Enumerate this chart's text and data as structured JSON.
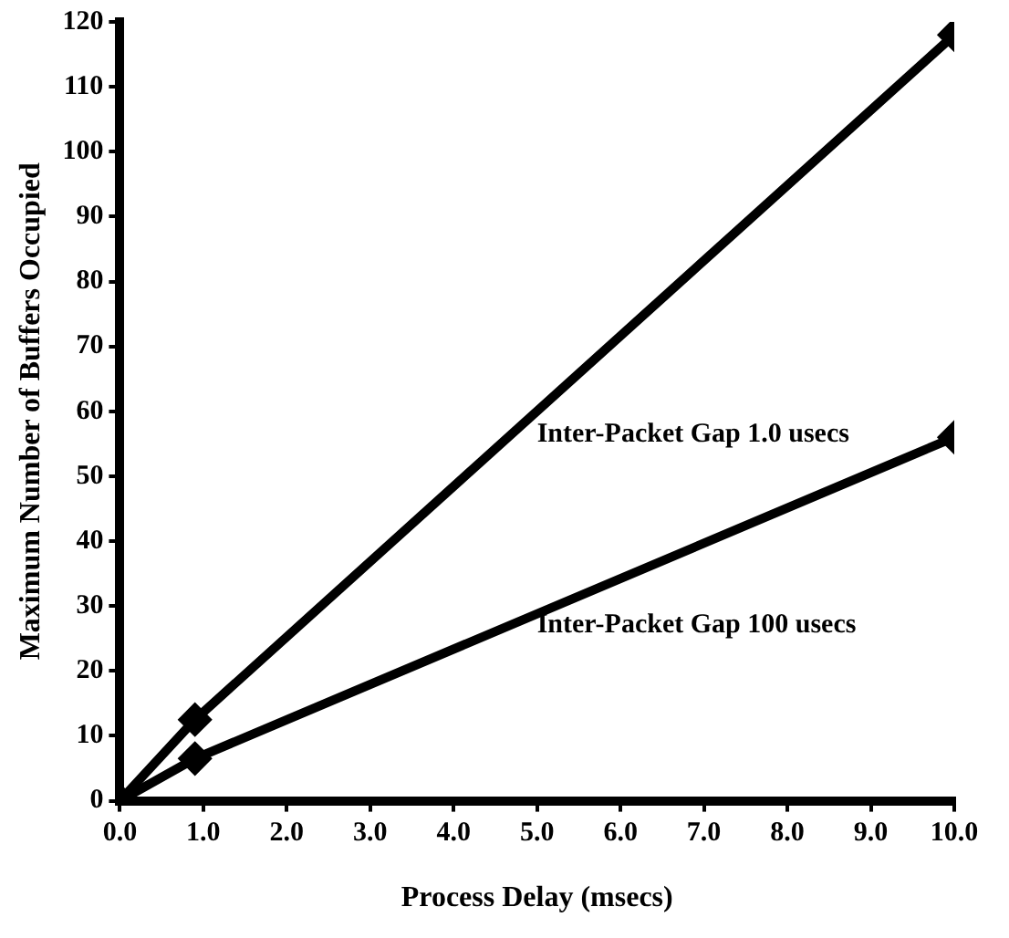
{
  "chart_data": {
    "type": "line",
    "xlabel": "Process Delay (msecs)",
    "ylabel": "Maximum Number of Buffers Occupied",
    "series": [
      {
        "name": "Inter-Packet Gap 1.0 usecs",
        "color": "#000000",
        "x": [
          0,
          0.9,
          10
        ],
        "values": [
          0,
          12.5,
          118
        ]
      },
      {
        "name": "Inter-Packet Gap 100 usecs",
        "color": "#000000",
        "x": [
          0,
          0.9,
          10
        ],
        "values": [
          0,
          6.5,
          56
        ]
      }
    ],
    "xlim": [
      0,
      10
    ],
    "xticks": [
      {
        "value": 0,
        "label": "0.0"
      },
      {
        "value": 1,
        "label": "1.0"
      },
      {
        "value": 2,
        "label": "2.0"
      },
      {
        "value": 3,
        "label": "3.0"
      },
      {
        "value": 4,
        "label": "4.0"
      },
      {
        "value": 5,
        "label": "5.0"
      },
      {
        "value": 6,
        "label": "6.0"
      },
      {
        "value": 7,
        "label": "7.0"
      },
      {
        "value": 8,
        "label": "8.0"
      },
      {
        "value": 9,
        "label": "9.0"
      },
      {
        "value": 10,
        "label": "10.0"
      }
    ],
    "ylim": [
      0,
      120
    ],
    "yticks": [
      0,
      10,
      20,
      30,
      40,
      50,
      60,
      70,
      80,
      90,
      100,
      110,
      120
    ],
    "grid": false,
    "legend": false,
    "marker": "diamond",
    "line_style": "solid"
  }
}
